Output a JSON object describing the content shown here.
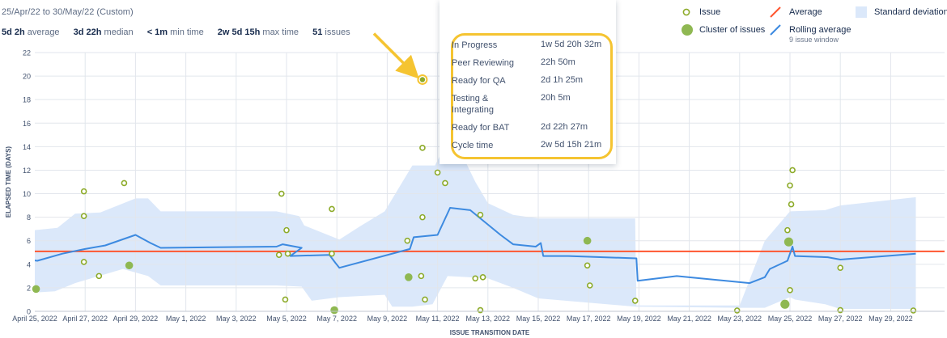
{
  "header": {
    "range": "25/Apr/22 to 30/May/22 (Custom)",
    "stats": [
      {
        "value": "5d 2h",
        "label": "average"
      },
      {
        "value": "3d 22h",
        "label": "median"
      },
      {
        "value": "< 1m",
        "label": "min time"
      },
      {
        "value": "2w 5d 15h",
        "label": "max time"
      },
      {
        "value": "51",
        "label": "issues"
      }
    ]
  },
  "legend": {
    "issue": "Issue",
    "average": "Average",
    "stddev": "Standard deviation",
    "cluster": "Cluster of issues",
    "rolling": "Rolling average",
    "rolling_sub": "9 issue window"
  },
  "colors": {
    "issue": "#8dab2a",
    "cluster": "#8fb852",
    "average": "#ff5630",
    "rolling": "#3d8ae0",
    "band": "#dbe8fa",
    "highlight": "#f5c431",
    "grid": "#e2e6ec"
  },
  "tooltip": {
    "rows": [
      {
        "label": "In Progress",
        "value": "1w 5d 20h 32m"
      },
      {
        "label": "Peer Reviewing",
        "value": "22h 50m"
      },
      {
        "label": "Ready for QA",
        "value": "2d 1h 25m"
      },
      {
        "label": "Testing & Integrating",
        "value": "20h 5m"
      },
      {
        "label": "Ready for BAT",
        "value": "2d 22h 27m"
      },
      {
        "label": "Cycle time",
        "value": "2w 5d 15h 21m"
      }
    ]
  },
  "chart_data": {
    "type": "scatter",
    "title": "",
    "xlabel": "ISSUE TRANSITION DATE",
    "ylabel": "ELAPSED TIME (DAYS)",
    "xlim": [
      0,
      35
    ],
    "ylim": [
      0,
      22
    ],
    "x_ticks": [
      {
        "x": 0,
        "label": "April 25, 2022"
      },
      {
        "x": 2,
        "label": "April 27, 2022"
      },
      {
        "x": 4,
        "label": "April 29, 2022"
      },
      {
        "x": 6,
        "label": "May 1, 2022"
      },
      {
        "x": 8,
        "label": "May 3, 2022"
      },
      {
        "x": 10,
        "label": "May 5, 2022"
      },
      {
        "x": 12,
        "label": "May 7, 2022"
      },
      {
        "x": 14,
        "label": "May 9, 2022"
      },
      {
        "x": 16,
        "label": "May 11, 2022"
      },
      {
        "x": 18,
        "label": "May 13, 2022"
      },
      {
        "x": 20,
        "label": "May 15, 2022"
      },
      {
        "x": 22,
        "label": "May 17, 2022"
      },
      {
        "x": 24,
        "label": "May 19, 2022"
      },
      {
        "x": 26,
        "label": "May 21, 2022"
      },
      {
        "x": 28,
        "label": "May 23, 2022"
      },
      {
        "x": 30,
        "label": "May 25, 2022"
      },
      {
        "x": 32,
        "label": "May 27, 2022"
      },
      {
        "x": 34,
        "label": "May 29, 2022"
      }
    ],
    "y_ticks": [
      0,
      2,
      4,
      6,
      8,
      10,
      12,
      14,
      16,
      18,
      20,
      22
    ],
    "average": 5.1,
    "issues": [
      [
        1.95,
        10.2
      ],
      [
        1.95,
        8.1
      ],
      [
        1.95,
        4.2
      ],
      [
        2.55,
        3.0
      ],
      [
        3.55,
        10.9
      ],
      [
        9.8,
        10.0
      ],
      [
        9.7,
        4.8
      ],
      [
        10.0,
        6.9
      ],
      [
        9.95,
        1.0
      ],
      [
        10.05,
        4.9
      ],
      [
        11.8,
        8.7
      ],
      [
        11.8,
        4.9
      ],
      [
        14.8,
        6.0
      ],
      [
        15.35,
        3.0
      ],
      [
        15.4,
        19.7
      ],
      [
        15.4,
        13.9
      ],
      [
        15.4,
        8.0
      ],
      [
        15.5,
        1.0
      ],
      [
        16.0,
        11.8
      ],
      [
        16.3,
        10.9
      ],
      [
        17.5,
        2.8
      ],
      [
        17.7,
        8.2
      ],
      [
        17.8,
        2.9
      ],
      [
        17.7,
        0.1
      ],
      [
        21.95,
        3.9
      ],
      [
        22.05,
        2.2
      ],
      [
        23.85,
        0.9
      ],
      [
        27.9,
        0.0
      ],
      [
        29.9,
        6.9
      ],
      [
        30.0,
        10.7
      ],
      [
        30.1,
        12.0
      ],
      [
        30.05,
        9.1
      ],
      [
        30.0,
        1.8
      ],
      [
        32.0,
        3.7
      ],
      [
        32.0,
        0.1
      ],
      [
        34.9,
        0.0
      ]
    ],
    "clusters": [
      {
        "x": 0.05,
        "y": 1.9,
        "size": "small"
      },
      {
        "x": 3.75,
        "y": 3.9,
        "size": "small"
      },
      {
        "x": 11.9,
        "y": 0.1,
        "size": "small"
      },
      {
        "x": 14.85,
        "y": 2.9,
        "size": "small"
      },
      {
        "x": 21.95,
        "y": 6.0,
        "size": "small"
      },
      {
        "x": 29.8,
        "y": 0.6,
        "size": "medium"
      },
      {
        "x": 29.95,
        "y": 5.9,
        "size": "medium"
      }
    ],
    "highlight_issue": [
      15.4,
      19.7
    ],
    "rolling": [
      [
        -1.3,
        4.3
      ],
      [
        -0.6,
        4.3
      ],
      [
        -0.3,
        4.4
      ],
      [
        0.1,
        4.3
      ],
      [
        1.1,
        4.9
      ],
      [
        2.0,
        5.3
      ],
      [
        2.8,
        5.6
      ],
      [
        4.0,
        6.5
      ],
      [
        4.6,
        5.8
      ],
      [
        5.0,
        5.4
      ],
      [
        9.6,
        5.5
      ],
      [
        9.85,
        5.7
      ],
      [
        10.6,
        5.4
      ],
      [
        10.15,
        4.7
      ],
      [
        11.7,
        4.8
      ],
      [
        11.95,
        4.1
      ],
      [
        12.1,
        3.7
      ],
      [
        14.9,
        5.3
      ],
      [
        15.05,
        6.3
      ],
      [
        16.0,
        6.5
      ],
      [
        16.5,
        8.8
      ],
      [
        17.3,
        8.6
      ],
      [
        18.5,
        6.5
      ],
      [
        19.0,
        5.7
      ],
      [
        19.9,
        5.5
      ],
      [
        20.1,
        5.8
      ],
      [
        20.2,
        4.7
      ],
      [
        21.2,
        4.7
      ],
      [
        23.9,
        4.5
      ],
      [
        23.95,
        2.6
      ],
      [
        25.5,
        3.0
      ],
      [
        28.4,
        2.4
      ],
      [
        29.0,
        2.9
      ],
      [
        29.2,
        3.6
      ],
      [
        29.9,
        4.3
      ],
      [
        30.1,
        5.5
      ],
      [
        30.2,
        4.7
      ],
      [
        31.5,
        4.6
      ],
      [
        32.0,
        4.4
      ],
      [
        35.0,
        4.9
      ]
    ],
    "band_upper": [
      [
        -1.3,
        6.6
      ],
      [
        0.0,
        6.9
      ],
      [
        0.9,
        7.1
      ],
      [
        1.6,
        8.3
      ],
      [
        2.6,
        8.4
      ],
      [
        4.0,
        9.6
      ],
      [
        4.5,
        9.6
      ],
      [
        5.0,
        8.5
      ],
      [
        9.6,
        8.5
      ],
      [
        10.5,
        8.1
      ],
      [
        10.7,
        7.3
      ],
      [
        12.1,
        6.1
      ],
      [
        12.9,
        7.2
      ],
      [
        13.9,
        8.5
      ],
      [
        15.0,
        12.4
      ],
      [
        15.9,
        12.4
      ],
      [
        16.4,
        14.5
      ],
      [
        17.0,
        13.2
      ],
      [
        17.5,
        11.0
      ],
      [
        18.0,
        9.2
      ],
      [
        19.0,
        8.2
      ],
      [
        20.0,
        7.9
      ],
      [
        23.85,
        7.9
      ],
      [
        23.9,
        0.5
      ],
      [
        28.0,
        0.5
      ],
      [
        29.0,
        6.0
      ],
      [
        30.0,
        8.5
      ],
      [
        31.4,
        8.6
      ],
      [
        32.0,
        9.0
      ],
      [
        35.0,
        9.7
      ]
    ],
    "band_lower": [
      [
        35.0,
        0.2
      ],
      [
        32.0,
        0.2
      ],
      [
        31.4,
        0.6
      ],
      [
        30.2,
        1.0
      ],
      [
        30.0,
        1.2
      ],
      [
        29.0,
        0.3
      ],
      [
        28.0,
        0.3
      ],
      [
        24.0,
        0.4
      ],
      [
        23.85,
        0.4
      ],
      [
        20.0,
        1.1
      ],
      [
        19.0,
        2.0
      ],
      [
        18.0,
        2.8
      ],
      [
        17.2,
        2.9
      ],
      [
        16.4,
        3.0
      ],
      [
        15.8,
        0.6
      ],
      [
        15.0,
        0.4
      ],
      [
        14.2,
        0.4
      ],
      [
        13.9,
        1.4
      ],
      [
        12.9,
        1.3
      ],
      [
        12.1,
        1.2
      ],
      [
        11.0,
        0.9
      ],
      [
        10.6,
        2.1
      ],
      [
        9.6,
        2.2
      ],
      [
        5.0,
        2.2
      ],
      [
        4.5,
        3.0
      ],
      [
        3.5,
        3.6
      ],
      [
        1.6,
        2.4
      ],
      [
        0.8,
        1.7
      ],
      [
        0.0,
        1.6
      ],
      [
        -1.3,
        1.6
      ]
    ]
  }
}
